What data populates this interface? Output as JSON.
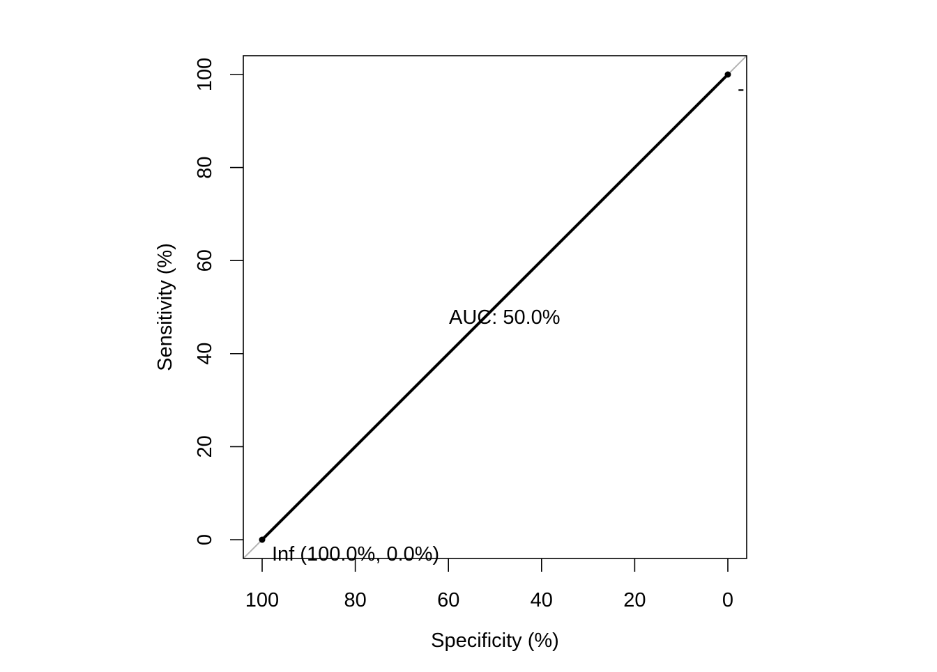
{
  "chart_data": {
    "type": "line",
    "xlabel": "Specificity (%)",
    "ylabel": "Sensitivity (%)",
    "x_reversed": true,
    "xlim": [
      100,
      0
    ],
    "ylim": [
      0,
      100
    ],
    "x_ticks": [
      100,
      80,
      60,
      40,
      20,
      0
    ],
    "y_ticks": [
      0,
      20,
      40,
      60,
      80,
      100
    ],
    "grid": false,
    "reference_line": {
      "description": "diagonal",
      "color": "#b3b3b3"
    },
    "series": [
      {
        "color": "#000000",
        "points": [
          {
            "specificity": 100,
            "sensitivity": 0
          },
          {
            "specificity": 0,
            "sensitivity": 100
          }
        ]
      }
    ],
    "threshold_points": [
      {
        "specificity": 100,
        "sensitivity": 0,
        "label": "Inf (100.0%, 0.0%)"
      },
      {
        "specificity": 0,
        "sensitivity": 100,
        "label": "-"
      }
    ],
    "annotations": [
      {
        "text": "AUC: 50.0%",
        "specificity": 50,
        "sensitivity": 50
      }
    ]
  }
}
